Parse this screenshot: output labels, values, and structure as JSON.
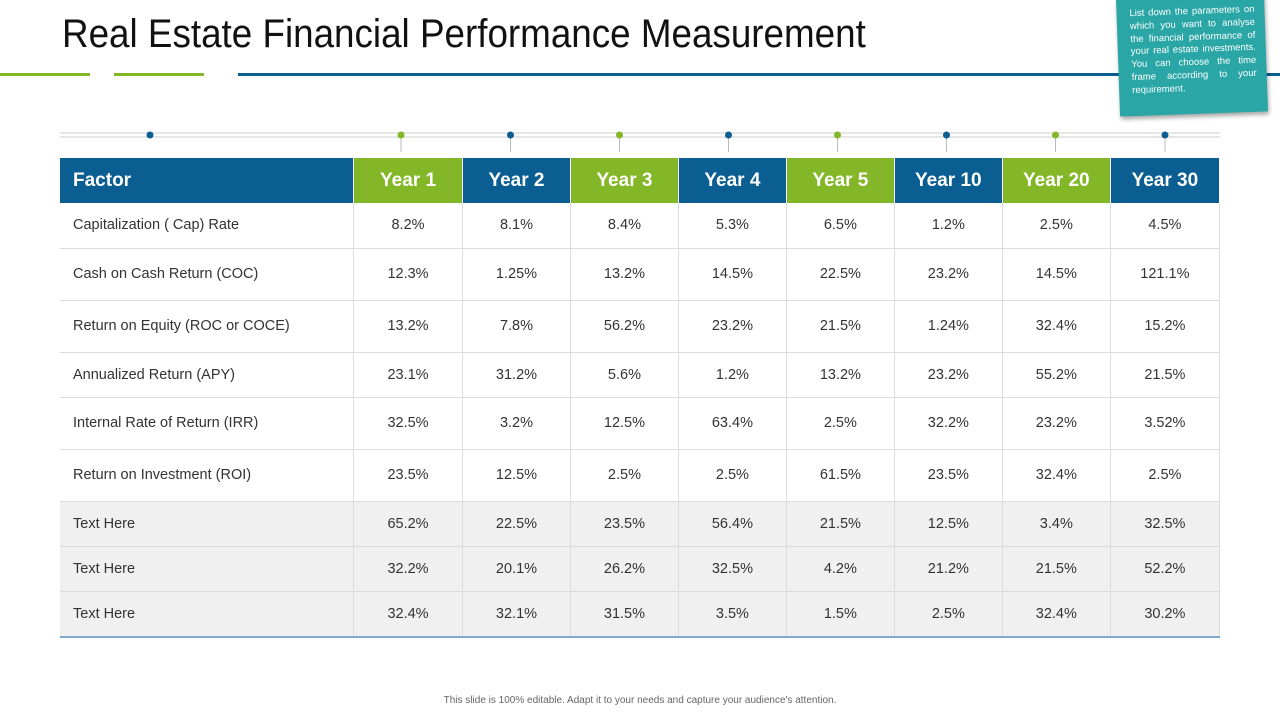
{
  "header": {
    "title": "Real Estate Financial Performance Measurement",
    "note": "List down the parameters on which you want to analyse the financial performance of your real estate investments. You can choose the time frame according to your requirement."
  },
  "table": {
    "header": [
      "Factor",
      "Year 1",
      "Year 2",
      "Year 3",
      "Year 4",
      "Year 5",
      "Year 10",
      "Year 20",
      "Year 30"
    ],
    "rows": [
      [
        "Capitalization ( Cap) Rate",
        "8.2%",
        "8.1%",
        "8.4%",
        "5.3%",
        "6.5%",
        "1.2%",
        "2.5%",
        "4.5%"
      ],
      [
        "Cash on Cash Return (COC)",
        "12.3%",
        "1.25%",
        "13.2%",
        "14.5%",
        "22.5%",
        "23.2%",
        "14.5%",
        "121.1%"
      ],
      [
        "Return on Equity (ROC or COCE)",
        "13.2%",
        "7.8%",
        "56.2%",
        "23.2%",
        "21.5%",
        "1.24%",
        "32.4%",
        "15.2%"
      ],
      [
        "Annualized Return (APY)",
        "23.1%",
        "31.2%",
        "5.6%",
        "1.2%",
        "13.2%",
        "23.2%",
        "55.2%",
        "21.5%"
      ],
      [
        "Internal Rate of Return (IRR)",
        "32.5%",
        "3.2%",
        "12.5%",
        "63.4%",
        "2.5%",
        "32.2%",
        "23.2%",
        "3.52%"
      ],
      [
        "Return on Investment (ROI)",
        "23.5%",
        "12.5%",
        "2.5%",
        "2.5%",
        "61.5%",
        "23.5%",
        "32.4%",
        "2.5%"
      ],
      [
        "Text Here",
        "65.2%",
        "22.5%",
        "23.5%",
        "56.4%",
        "21.5%",
        "12.5%",
        "3.4%",
        "32.5%"
      ],
      [
        "Text Here",
        "32.2%",
        "20.1%",
        "26.2%",
        "32.5%",
        "4.2%",
        "21.2%",
        "21.5%",
        "52.2%"
      ],
      [
        "Text Here",
        "32.4%",
        "32.1%",
        "31.5%",
        "3.5%",
        "1.5%",
        "2.5%",
        "32.4%",
        "30.2%"
      ]
    ]
  },
  "footer": {
    "text": "This slide is 100% editable. Adapt it to your needs and capture your audience's attention."
  }
}
